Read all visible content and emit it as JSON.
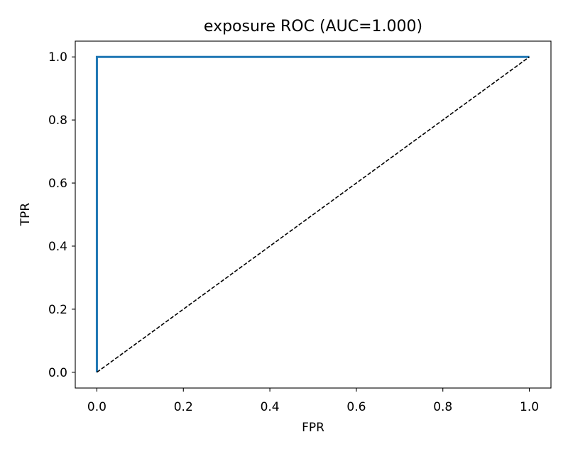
{
  "chart_data": {
    "type": "line",
    "title": "exposure ROC (AUC=1.000)",
    "xlabel": "FPR",
    "ylabel": "TPR",
    "xlim": [
      -0.05,
      1.05
    ],
    "ylim": [
      -0.05,
      1.05
    ],
    "xticks": [
      "0.0",
      "0.2",
      "0.4",
      "0.6",
      "0.8",
      "1.0"
    ],
    "yticks": [
      "0.0",
      "0.2",
      "0.4",
      "0.6",
      "0.8",
      "1.0"
    ],
    "grid": false,
    "series": [
      {
        "style": "solid",
        "color": "#1f77b4",
        "x": [
          0.0,
          0.0,
          1.0
        ],
        "y": [
          0.0,
          1.0,
          1.0
        ]
      },
      {
        "style": "dashed",
        "color": "#000000",
        "x": [
          0.0,
          1.0
        ],
        "y": [
          0.0,
          1.0
        ]
      }
    ]
  }
}
